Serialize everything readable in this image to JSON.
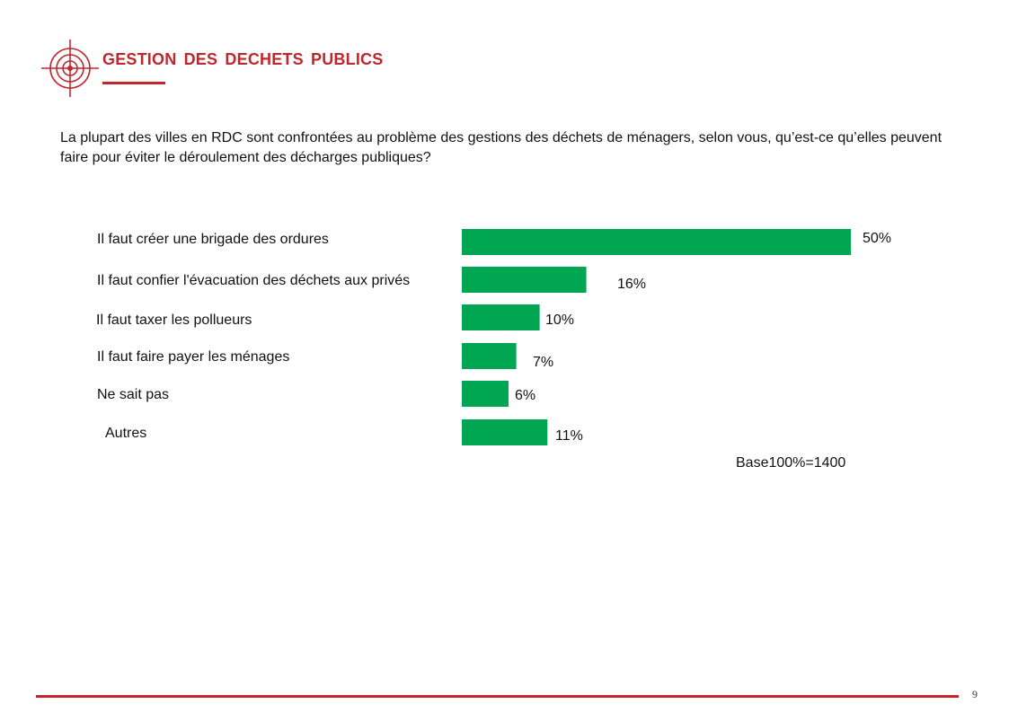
{
  "header": {
    "title": "GESTION  DES DECHETS PUBLICS",
    "logo_icon": "crosshair-target-icon",
    "accent_color": "#c0272d"
  },
  "question": "La plupart des villes en RDC sont confrontées au problème des gestions des déchets de ménagers, selon vous, qu’est-ce qu’elles peuvent faire pour éviter le déroulement des décharges publiques?",
  "chart_data": {
    "type": "bar",
    "orientation": "horizontal",
    "bar_color": "#00a651",
    "categories": [
      "Il faut créer une brigade des ordures",
      "Il faut confier l'évacuation des déchets aux privés",
      "Il faut taxer les pollueurs",
      "Il faut faire payer les ménages",
      "Ne sait pas",
      "Autres"
    ],
    "values": [
      50,
      16,
      10,
      7,
      6,
      11
    ],
    "value_labels": [
      "50%",
      "16%",
      "10%",
      "7%",
      "6%",
      "11%"
    ],
    "xlim": [
      0,
      50
    ],
    "grid": false,
    "base_note": "Base100%=1400"
  },
  "footer": {
    "page_number": "9"
  }
}
